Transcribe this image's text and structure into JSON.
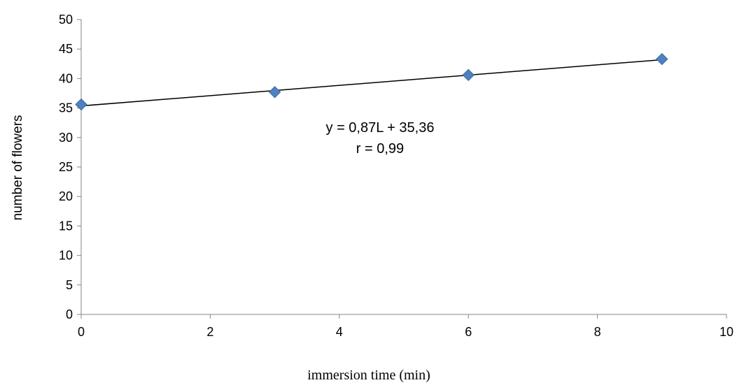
{
  "chart_data": {
    "type": "scatter",
    "title": "",
    "xlabel": "immersion time (min)",
    "ylabel": "number of flowers",
    "xlim": [
      0,
      10
    ],
    "ylim": [
      0,
      50
    ],
    "x_ticks": [
      0,
      2,
      4,
      6,
      8,
      10
    ],
    "y_ticks": [
      0,
      5,
      10,
      15,
      20,
      25,
      30,
      35,
      40,
      45,
      50
    ],
    "grid": false,
    "legend": "none",
    "series": [
      {
        "x": [
          0,
          3,
          6,
          9
        ],
        "y": [
          35.6,
          37.7,
          40.6,
          43.3
        ],
        "color": "#4f81bd",
        "marker": "diamond"
      }
    ],
    "trendline": {
      "slope": 0.87,
      "intercept": 35.36,
      "x_range": [
        0,
        9
      ],
      "color": "#000000"
    },
    "annotations": {
      "equation": "y = 0,87L + 35,36",
      "r": "r = 0,99"
    }
  }
}
